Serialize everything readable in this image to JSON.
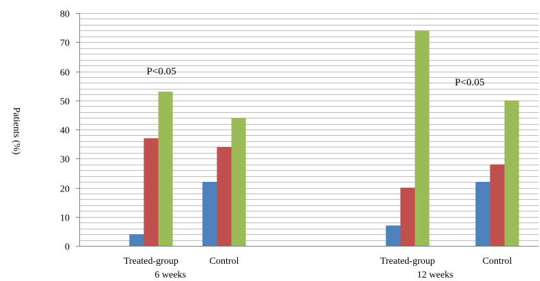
{
  "chart_data": {
    "type": "bar",
    "ylabel": "Patients (%)",
    "ylim": [
      0,
      80
    ],
    "ytick_step": 10,
    "minor_grid_step": 2,
    "grid": true,
    "groups": [
      {
        "label": "6 weeks",
        "categories": [
          {
            "label": "Treated-group",
            "values": [
              4,
              37,
              53
            ]
          },
          {
            "label": "Control",
            "values": [
              22,
              34,
              44
            ]
          }
        ],
        "annotation": "P<0.05"
      },
      {
        "label": "12 weeks",
        "categories": [
          {
            "label": "Treated-group",
            "values": [
              7,
              20,
              74
            ]
          },
          {
            "label": "Control",
            "values": [
              22,
              28,
              50
            ]
          }
        ],
        "annotation": "P<0.05"
      }
    ],
    "series_colors": [
      "#4f81bd",
      "#c0504d",
      "#9bbb59"
    ]
  }
}
